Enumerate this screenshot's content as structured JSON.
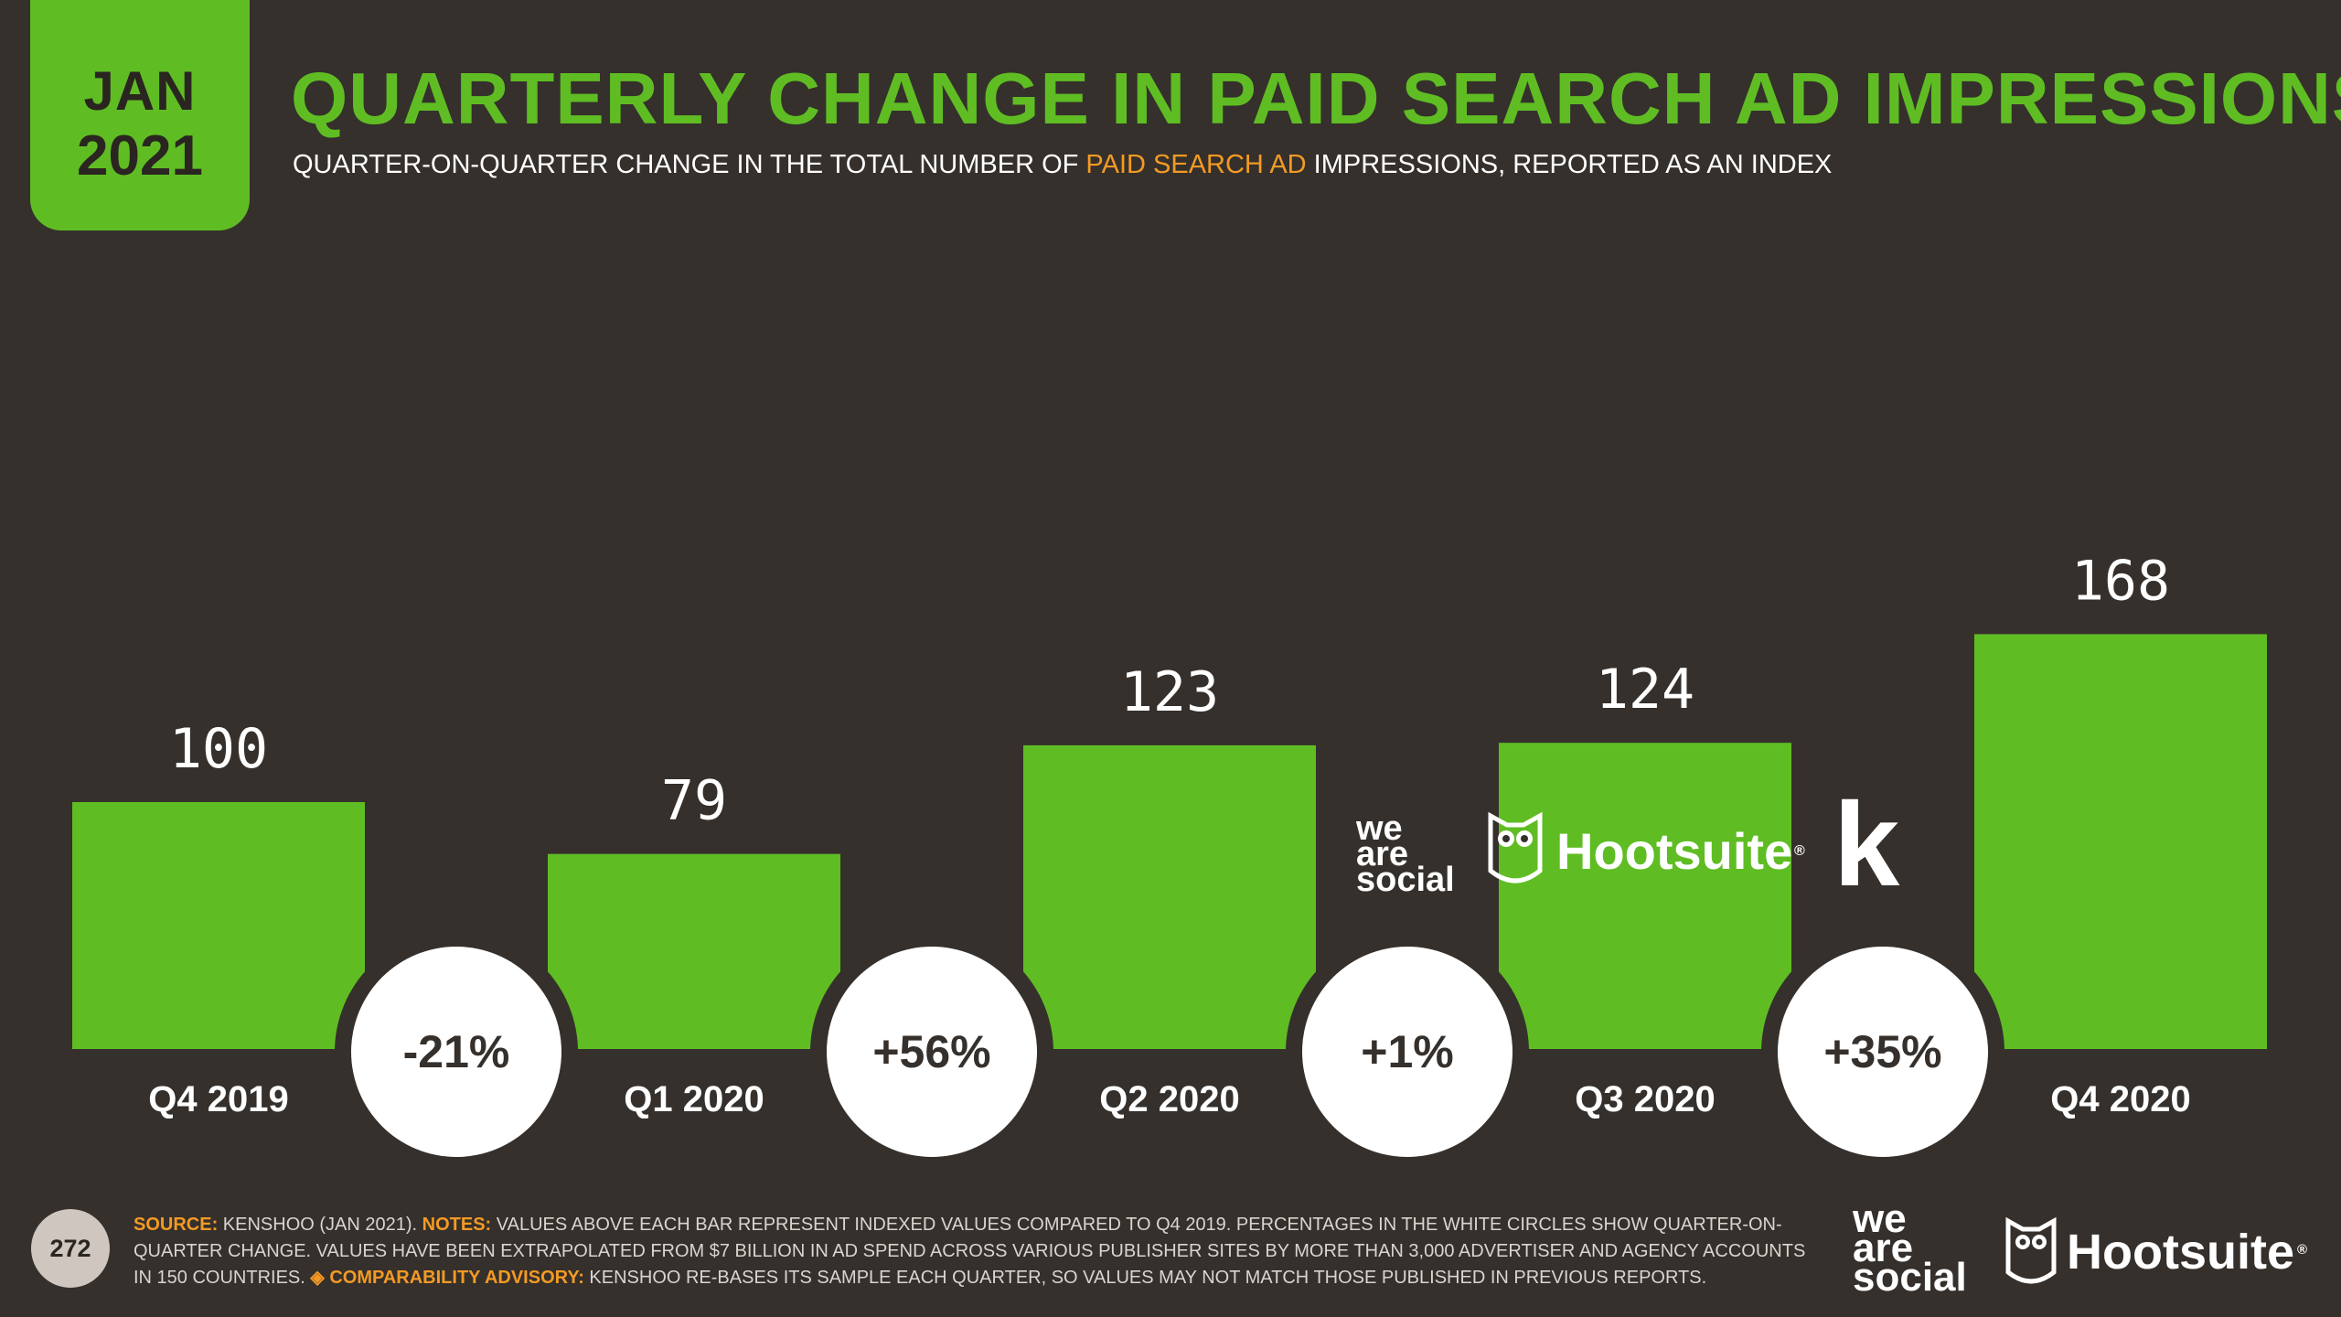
{
  "date_badge": {
    "month": "JAN",
    "year": "2021"
  },
  "title": "QUARTERLY CHANGE IN PAID SEARCH AD IMPRESSIONS",
  "subtitle": {
    "pre": "QUARTER-ON-QUARTER CHANGE IN THE TOTAL NUMBER OF ",
    "highlight": "PAID SEARCH AD",
    "post": " IMPRESSIONS, REPORTED AS AN INDEX"
  },
  "chart_data": {
    "type": "bar",
    "title": "QUARTERLY CHANGE IN PAID SEARCH AD IMPRESSIONS",
    "categories": [
      "Q4 2019",
      "Q1 2020",
      "Q2 2020",
      "Q3 2020",
      "Q4 2020"
    ],
    "values": [
      100,
      79,
      123,
      124,
      168
    ],
    "changes": [
      "-21%",
      "+56%",
      "+1%",
      "+35%"
    ],
    "ylim": [
      0,
      170
    ],
    "grid": false,
    "legend": "none",
    "bar_color": "#5fbd23",
    "background": "#35302c"
  },
  "logos": {
    "we_are_social": [
      "we",
      "are",
      "social"
    ],
    "hootsuite": "Hootsuite",
    "registered": "®",
    "kenshoo": "k"
  },
  "footer": {
    "source_label": "SOURCE:",
    "source_text": " KENSHOO (JAN 2021). ",
    "notes_label": "NOTES:",
    "notes_text": " VALUES ABOVE EACH BAR REPRESENT INDEXED VALUES COMPARED TO Q4 2019. PERCENTAGES IN THE WHITE CIRCLES SHOW QUARTER-ON-QUARTER CHANGE. VALUES HAVE BEEN EXTRAPOLATED FROM $7 BILLION IN AD SPEND ACROSS VARIOUS PUBLISHER SITES BY MORE THAN 3,000 ADVERTISER AND AGENCY ACCOUNTS IN 150 COUNTRIES. ",
    "advisory_label": "◈ COMPARABILITY ADVISORY:",
    "advisory_text": " KENSHOO RE-BASES ITS SAMPLE EACH QUARTER, SO VALUES MAY NOT MATCH THOSE PUBLISHED IN PREVIOUS REPORTS."
  },
  "page_number": "272"
}
